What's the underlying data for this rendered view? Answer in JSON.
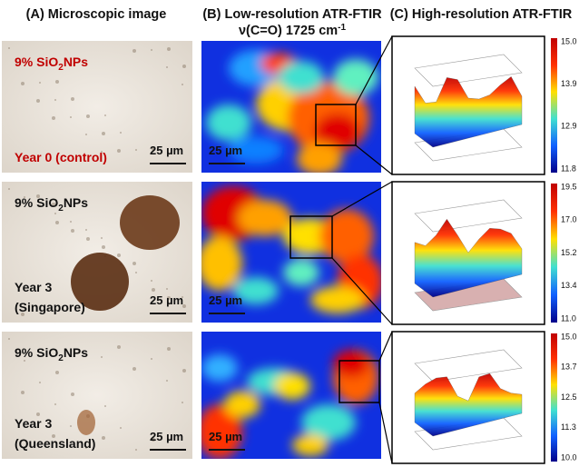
{
  "headers": {
    "a": "(A) Microscopic image",
    "b_line1": "(B) Low-resolution ATR-FTIR",
    "b_line2": {
      "text": "ν(C=O) 1725 cm",
      "sup": "-1"
    },
    "c": "(C) High-resolution ATR-FTIR"
  },
  "rows": [
    {
      "sample": {
        "text": "9% SiO",
        "sub": "2",
        "suffix": "NPs"
      },
      "condition": [
        "Year 0 (control)"
      ],
      "scale_a": "25 µm",
      "scale_b": "25 µm",
      "colorbar": [
        "15.0",
        "13.9",
        "12.9",
        "11.8"
      ]
    },
    {
      "sample": {
        "text": "9% SiO",
        "sub": "2",
        "suffix": "NPs"
      },
      "condition": [
        "Year 3",
        "(Singapore)"
      ],
      "scale_a": "25 µm",
      "scale_b": "25 µm",
      "colorbar": [
        "19.5",
        "17.0",
        "15.2",
        "13.4",
        "11.0"
      ]
    },
    {
      "sample": {
        "text": "9% SiO",
        "sub": "2",
        "suffix": "NPs"
      },
      "condition": [
        "Year 3",
        "(Queensland)"
      ],
      "scale_a": "25 µm",
      "scale_b": "25 µm",
      "colorbar": [
        "15.0",
        "13.7",
        "12.5",
        "11.3",
        "10.0"
      ]
    }
  ]
}
